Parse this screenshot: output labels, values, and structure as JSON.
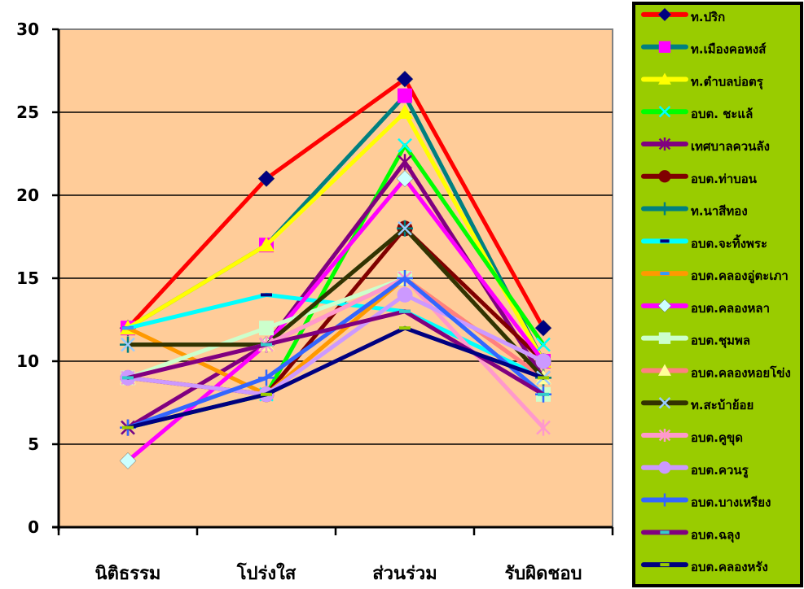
{
  "colors": {
    "plot_background": "#FFCC99",
    "legend_background": "#99CC00",
    "gridline": "#000000",
    "plot_border": "#808080"
  },
  "chart_data": {
    "type": "line",
    "title": "",
    "xlabel": "",
    "ylabel": "",
    "categories": [
      "นิติธรรม",
      "โปร่งใส",
      "ส่วนร่วม",
      "รับผิดชอบ"
    ],
    "ylim": [
      0,
      30
    ],
    "yticks": [
      "0",
      "5",
      "10",
      "15",
      "20",
      "25",
      "30"
    ],
    "grid": true,
    "legend_position": "right",
    "series": [
      {
        "name": "ท.ปริก",
        "color": "#FF0000",
        "marker": "diamond",
        "marker_color": "#000080",
        "values": [
          12,
          21,
          27,
          12
        ]
      },
      {
        "name": "ท.เมืองคอหงส์",
        "color": "#008080",
        "marker": "square",
        "marker_color": "#FF00FF",
        "values": [
          12,
          17,
          26,
          10
        ]
      },
      {
        "name": "ท.ตำบลบ่อตรุ",
        "color": "#FFFF00",
        "marker": "triangle",
        "marker_color": "#FFFF00",
        "values": [
          12,
          17,
          25,
          10
        ]
      },
      {
        "name": "อบต. ชะแล้",
        "color": "#00FF00",
        "marker": "x",
        "marker_color": "#00FFFF",
        "values": [
          6,
          8,
          23,
          11
        ]
      },
      {
        "name": "เทศบาลควนลัง",
        "color": "#800080",
        "marker": "star",
        "marker_color": "#800080",
        "values": [
          6,
          11,
          22,
          9
        ]
      },
      {
        "name": "อบต.ท่าบอน",
        "color": "#800000",
        "marker": "circle",
        "marker_color": "#800000",
        "values": [
          9,
          8,
          18,
          10
        ]
      },
      {
        "name": "ท.นาสีทอง",
        "color": "#008080",
        "marker": "plus",
        "marker_color": "#008080",
        "values": [
          11,
          11,
          18,
          9
        ]
      },
      {
        "name": "อบต.จะทิ้งพระ",
        "color": "#00FFFF",
        "marker": "dash",
        "marker_color": "#000080",
        "values": [
          12,
          14,
          13,
          9
        ]
      },
      {
        "name": "อบต.คลองอู่ตะเภา",
        "color": "#FF9900",
        "marker": "dash",
        "marker_color": "#3399FF",
        "values": [
          12,
          8,
          15,
          9
        ]
      },
      {
        "name": "อบต.คลองหลา",
        "color": "#FF00FF",
        "marker": "diamond",
        "marker_color": "#CCFFFF",
        "values": [
          4,
          11,
          21,
          10
        ]
      },
      {
        "name": "อบต.ชุมพล",
        "color": "#CCFFCC",
        "marker": "square",
        "marker_color": "#CCFFCC",
        "values": [
          9,
          12,
          15,
          8
        ]
      },
      {
        "name": "อบต.คลองหอยโข่ง",
        "color": "#FF8080",
        "marker": "triangle",
        "marker_color": "#FFFF99",
        "values": [
          9,
          11,
          15,
          9
        ]
      },
      {
        "name": "ท.สะบ้าย้อย",
        "color": "#333300",
        "marker": "x",
        "marker_color": "#99CCFF",
        "values": [
          11,
          11,
          18,
          9
        ]
      },
      {
        "name": "อบต.คูขุด",
        "color": "#FF99CC",
        "marker": "star",
        "marker_color": "#FF99CC",
        "values": [
          9,
          11,
          15,
          6
        ]
      },
      {
        "name": "อบต.ควนรู",
        "color": "#CC99FF",
        "marker": "circle",
        "marker_color": "#CC99FF",
        "values": [
          9,
          8,
          14,
          10
        ]
      },
      {
        "name": "อบต.บางเหรียง",
        "color": "#3366FF",
        "marker": "plus",
        "marker_color": "#3366FF",
        "values": [
          6,
          9,
          15,
          8
        ]
      },
      {
        "name": "อบต.ฉลุง",
        "color": "#800080",
        "marker": "dash",
        "marker_color": "#33CCCC",
        "values": [
          9,
          11,
          13,
          8
        ]
      },
      {
        "name": "อบต.คลองหรัง",
        "color": "#000080",
        "marker": "dash",
        "marker_color": "#99CC00",
        "values": [
          6,
          8,
          12,
          9
        ]
      }
    ]
  }
}
